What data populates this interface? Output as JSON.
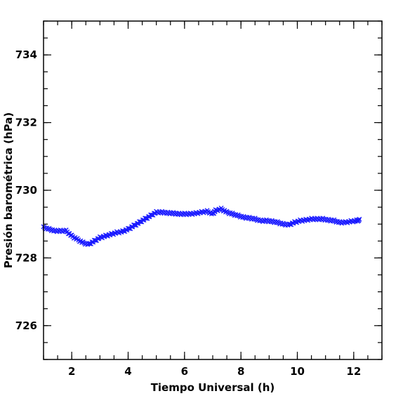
{
  "chart_data": {
    "type": "scatter",
    "xlabel": "Tiempo Universal (h)",
    "ylabel": "Presión barométrica (hPa)",
    "xlim": [
      1,
      13
    ],
    "ylim": [
      725,
      735
    ],
    "x_ticks": [
      2,
      4,
      6,
      8,
      10,
      12
    ],
    "y_ticks": [
      726,
      728,
      730,
      732,
      734
    ],
    "x_minor_step": 0.5,
    "y_minor_step": 0.5,
    "grid": false,
    "marker": "x-cross",
    "series": [
      {
        "color": "#1a1aff",
        "x": [
          1.0,
          1.2,
          1.4,
          1.6,
          1.8,
          2.0,
          2.2,
          2.4,
          2.6,
          2.8,
          3.0,
          3.2,
          3.4,
          3.6,
          3.8,
          4.0,
          4.2,
          4.4,
          4.6,
          4.8,
          5.0,
          5.2,
          5.4,
          5.6,
          5.8,
          6.0,
          6.2,
          6.4,
          6.6,
          6.8,
          7.0,
          7.1,
          7.3,
          7.5,
          7.7,
          7.9,
          8.1,
          8.3,
          8.5,
          8.7,
          8.9,
          9.1,
          9.3,
          9.5,
          9.7,
          9.9,
          10.1,
          10.3,
          10.5,
          10.7,
          10.9,
          11.1,
          11.3,
          11.5,
          11.7,
          11.9,
          12.1,
          12.2
        ],
        "y": [
          728.9,
          728.85,
          728.8,
          728.8,
          728.8,
          728.65,
          728.55,
          728.45,
          728.4,
          728.5,
          728.6,
          728.65,
          728.7,
          728.75,
          728.78,
          728.85,
          728.95,
          729.05,
          729.15,
          729.25,
          729.35,
          729.35,
          729.33,
          729.32,
          729.3,
          729.3,
          729.3,
          729.32,
          729.35,
          729.38,
          729.3,
          729.4,
          729.45,
          729.35,
          729.3,
          729.25,
          729.2,
          729.18,
          729.15,
          729.1,
          729.1,
          729.08,
          729.05,
          729.0,
          728.98,
          729.05,
          729.1,
          729.12,
          729.15,
          729.15,
          729.15,
          729.12,
          729.1,
          729.05,
          729.05,
          729.08,
          729.1,
          729.12
        ]
      }
    ]
  }
}
